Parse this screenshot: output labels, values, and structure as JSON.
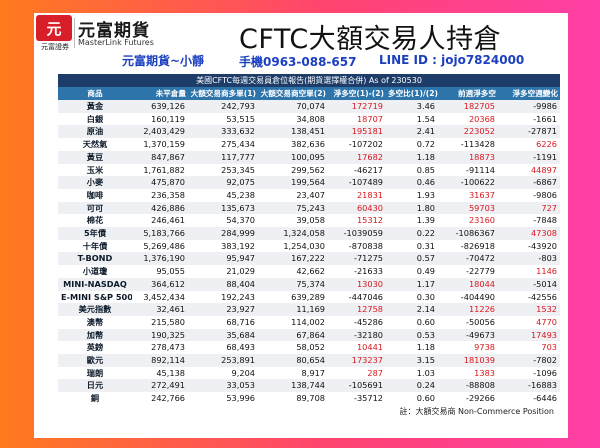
{
  "header": {
    "logo_char": "元",
    "logo_sub": "元富證券",
    "brand_zh": "元富期貨",
    "brand_en": "MasterLink Futures",
    "title": "CFTC大額交易人持倉",
    "broker_note": "元富期貨~小靜",
    "phone": "手機0963-088-657",
    "line_id": "LINE ID : jojo7824000"
  },
  "table": {
    "caption": "美國CFTC每週交易員倉位報告(期貨選擇權合併) As of  230530",
    "headers": [
      "商品",
      "未平倉量",
      "大額交易商多單(1)",
      "大額交易商空單(2)",
      "淨多空(1)-(2)",
      "多空比(1)/(2)",
      "前週淨多空",
      "淨多空週變化"
    ],
    "rows": [
      [
        "黃金",
        "639,126",
        "242,793",
        "70,074",
        "172719",
        "3.46",
        "182705",
        "-9986"
      ],
      [
        "白銀",
        "160,119",
        "53,515",
        "34,808",
        "18707",
        "1.54",
        "20368",
        "-1661"
      ],
      [
        "原油",
        "2,403,429",
        "333,632",
        "138,451",
        "195181",
        "2.41",
        "223052",
        "-27871"
      ],
      [
        "天然氣",
        "1,370,159",
        "275,434",
        "382,636",
        "-107202",
        "0.72",
        "-113428",
        "6226"
      ],
      [
        "黃豆",
        "847,867",
        "117,777",
        "100,095",
        "17682",
        "1.18",
        "18873",
        "-1191"
      ],
      [
        "玉米",
        "1,761,882",
        "253,345",
        "299,562",
        "-46217",
        "0.85",
        "-91114",
        "44897"
      ],
      [
        "小麥",
        "475,870",
        "92,075",
        "199,564",
        "-107489",
        "0.46",
        "-100622",
        "-6867"
      ],
      [
        "咖啡",
        "236,358",
        "45,238",
        "23,407",
        "21831",
        "1.93",
        "31637",
        "-9806"
      ],
      [
        "可可",
        "426,886",
        "135,673",
        "75,243",
        "60430",
        "1.80",
        "59703",
        "727"
      ],
      [
        "棉花",
        "246,461",
        "54,370",
        "39,058",
        "15312",
        "1.39",
        "23160",
        "-7848"
      ],
      [
        "5年債",
        "5,183,766",
        "284,999",
        "1,324,058",
        "-1039059",
        "0.22",
        "-1086367",
        "47308"
      ],
      [
        "十年債",
        "5,269,486",
        "383,192",
        "1,254,030",
        "-870838",
        "0.31",
        "-826918",
        "-43920"
      ],
      [
        "T-BOND",
        "1,376,190",
        "95,947",
        "167,222",
        "-71275",
        "0.57",
        "-70472",
        "-803"
      ],
      [
        "小道瓊",
        "95,055",
        "21,029",
        "42,662",
        "-21633",
        "0.49",
        "-22779",
        "1146"
      ],
      [
        "MINI-NASDAQ",
        "364,612",
        "88,404",
        "75,374",
        "13030",
        "1.17",
        "18044",
        "-5014"
      ],
      [
        "E-MINI S&P 500",
        "3,452,434",
        "192,243",
        "639,289",
        "-447046",
        "0.30",
        "-404490",
        "-42556"
      ],
      [
        "美元指數",
        "32,461",
        "23,927",
        "11,169",
        "12758",
        "2.14",
        "11226",
        "1532"
      ],
      [
        "澳幣",
        "215,580",
        "68,716",
        "114,002",
        "-45286",
        "0.60",
        "-50056",
        "4770"
      ],
      [
        "加幣",
        "190,325",
        "35,684",
        "67,864",
        "-32180",
        "0.53",
        "-49673",
        "17493"
      ],
      [
        "英鎊",
        "278,473",
        "68,493",
        "58,052",
        "10441",
        "1.18",
        "9738",
        "703"
      ],
      [
        "歐元",
        "892,114",
        "253,891",
        "80,654",
        "173237",
        "3.15",
        "181039",
        "-7802"
      ],
      [
        "瑞朗",
        "45,138",
        "9,204",
        "8,917",
        "287",
        "1.03",
        "1383",
        "-1096"
      ],
      [
        "日元",
        "272,491",
        "33,053",
        "138,744",
        "-105691",
        "0.24",
        "-88808",
        "-16883"
      ],
      [
        "銅",
        "242,766",
        "53,996",
        "89,708",
        "-35712",
        "0.60",
        "-29266",
        "-6446"
      ]
    ],
    "note": "註：大額交易商 Non-Commerce Position"
  },
  "colors": {
    "positive": "#d8171f",
    "negative": "#111111",
    "caption_bg": "#1d3d68",
    "header_bg": "#2c74aa",
    "accent_text": "#1a3fbf",
    "logo_red": "#d81e28"
  }
}
